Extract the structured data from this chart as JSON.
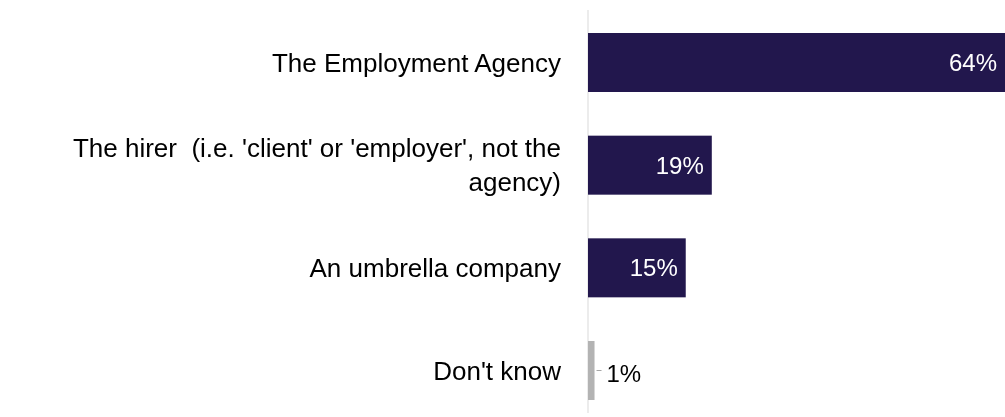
{
  "chart_data": {
    "type": "bar",
    "orientation": "horizontal",
    "categories": [
      "The Employment Agency",
      "The hirer  (i.e. 'client' or 'employer', not the agency)",
      "An umbrella company",
      "Don't know"
    ],
    "values": [
      64,
      19,
      15,
      1
    ],
    "colors": [
      "#22174d",
      "#22174d",
      "#22174d",
      "#b3b3b3"
    ],
    "value_labels": [
      "64%",
      "19%",
      "15%",
      "1%"
    ]
  }
}
